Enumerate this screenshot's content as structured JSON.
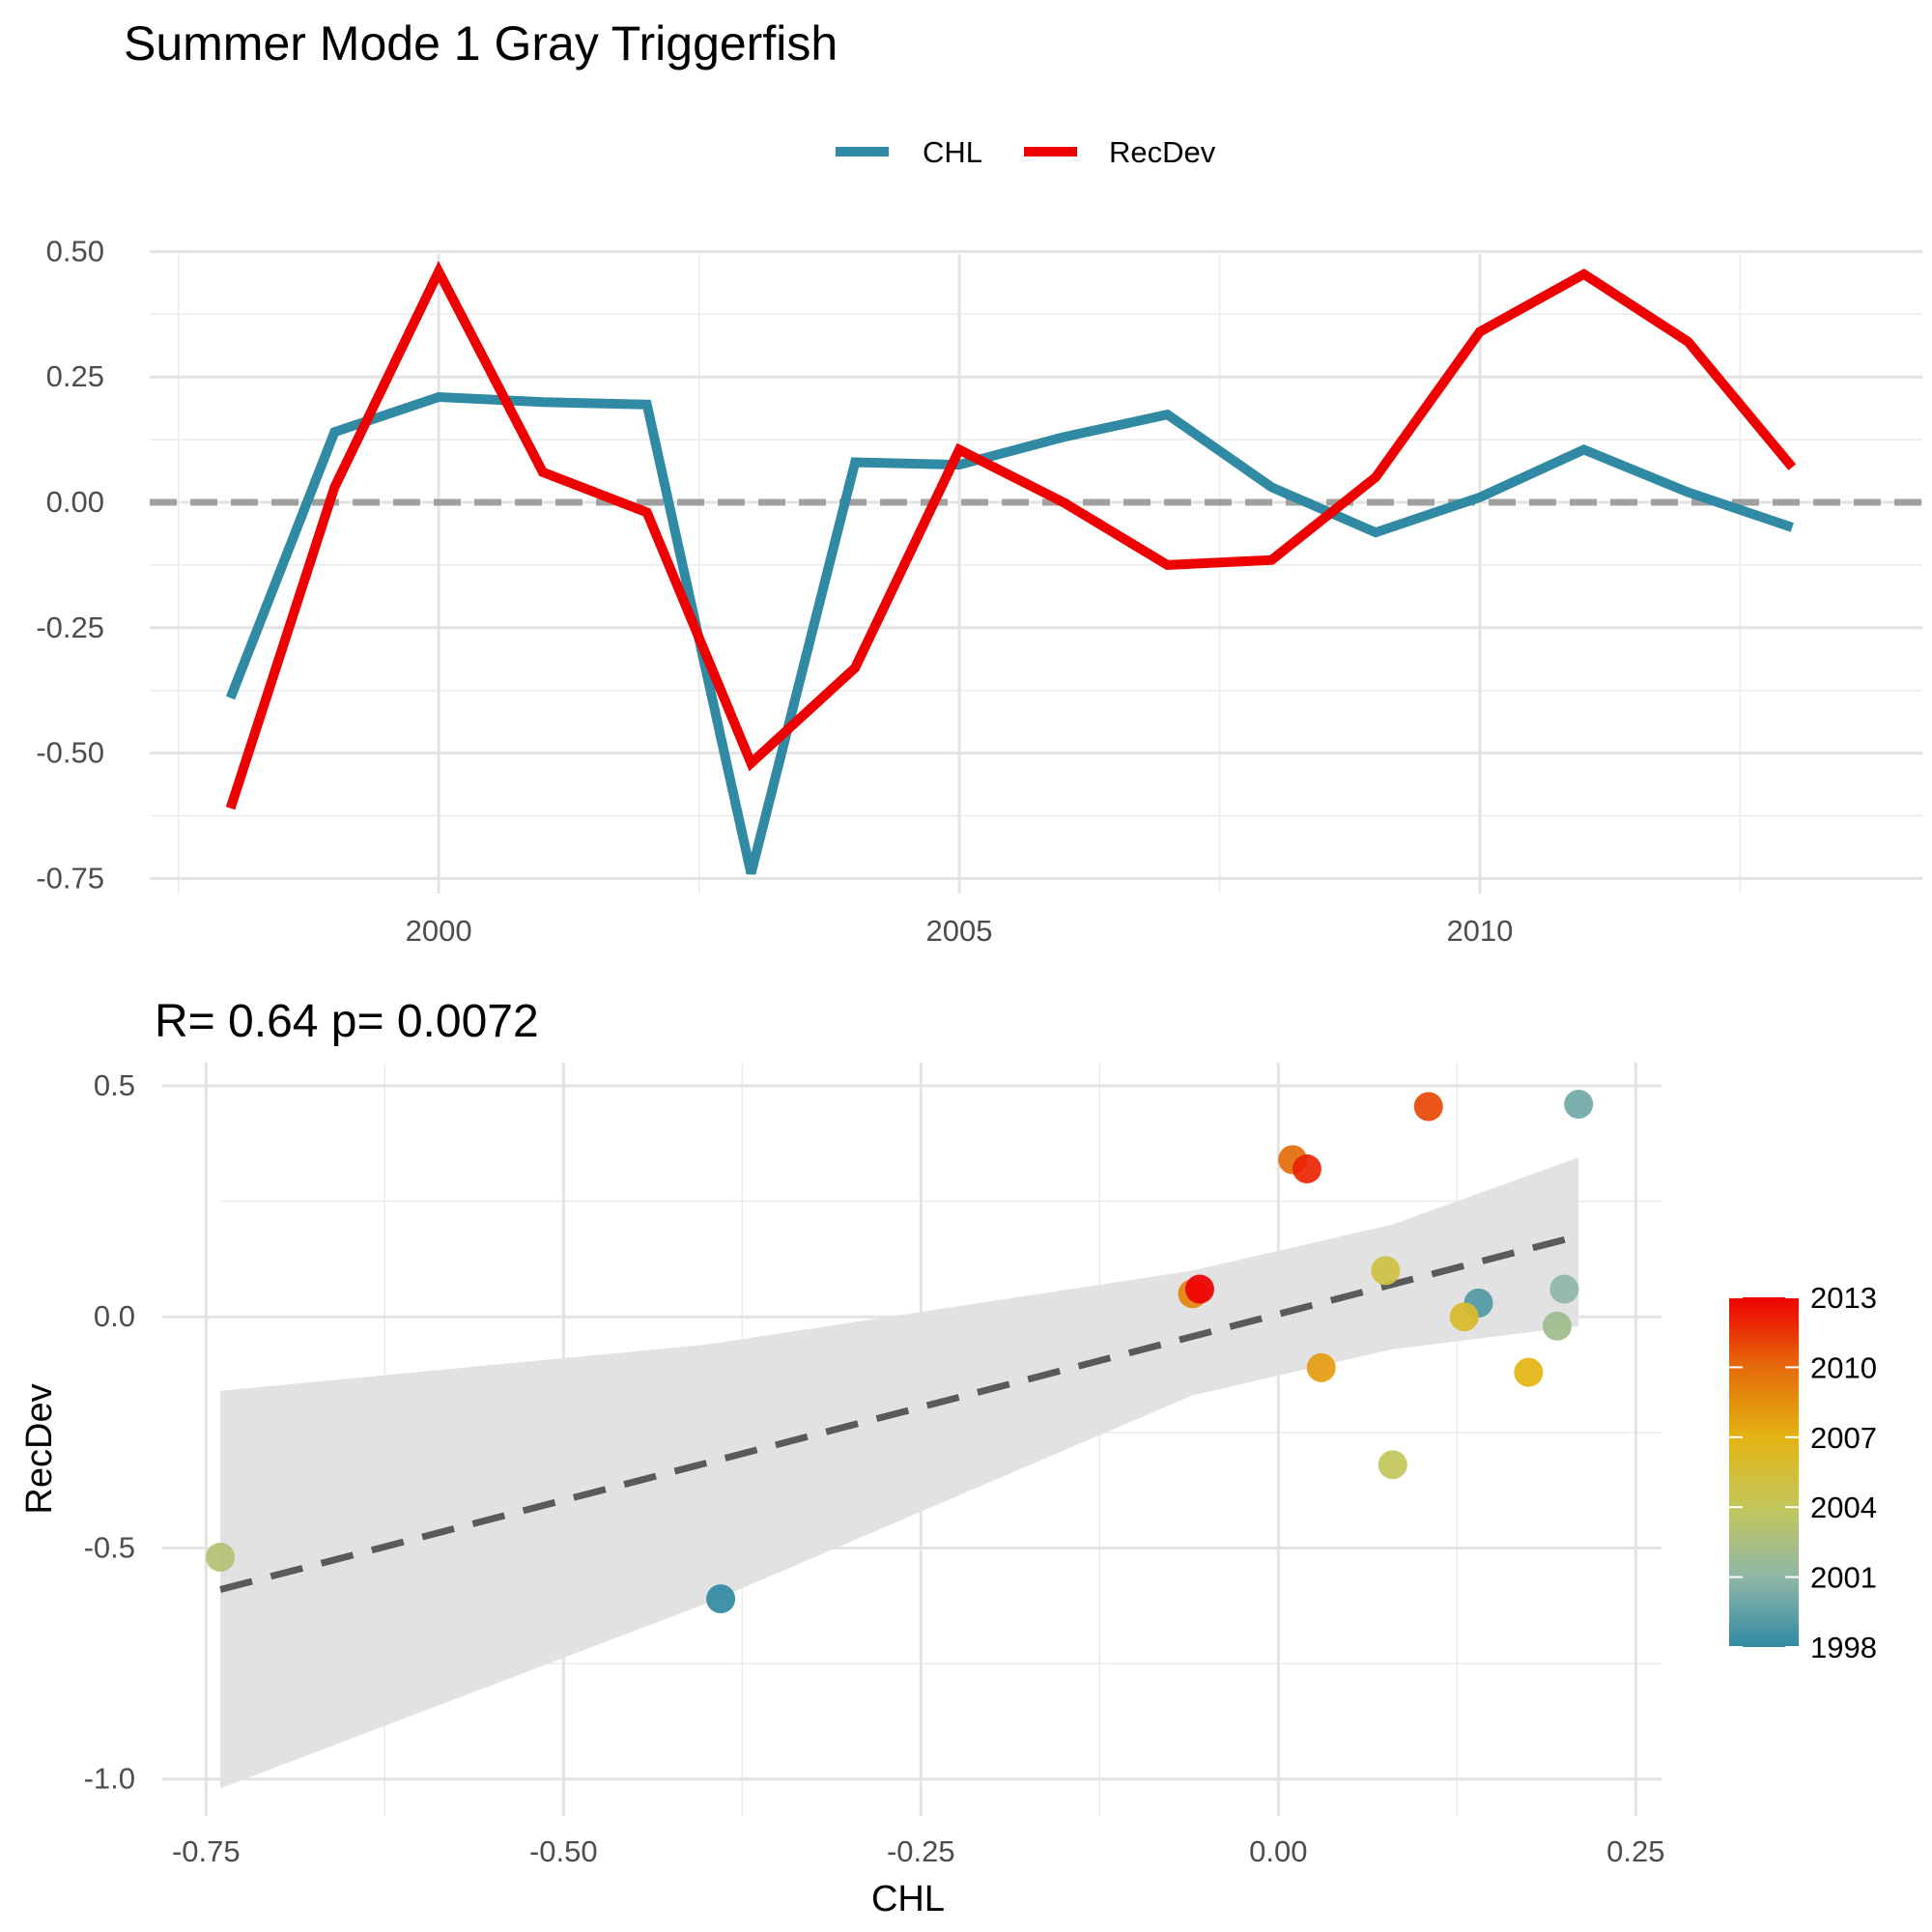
{
  "title": "Summer Mode 1 Gray Triggerfish",
  "chart_data": [
    {
      "type": "line",
      "legend": {
        "position": "top",
        "entries": [
          "CHL",
          "RecDev"
        ]
      },
      "x": [
        1998,
        1999,
        2000,
        2001,
        2002,
        2003,
        2004,
        2005,
        2006,
        2007,
        2008,
        2009,
        2010,
        2011,
        2012,
        2013
      ],
      "series": [
        {
          "name": "CHL",
          "color": "#318aa3",
          "values": [
            -0.39,
            0.14,
            0.21,
            0.2,
            0.195,
            -0.74,
            0.08,
            0.075,
            0.13,
            0.175,
            0.03,
            -0.06,
            0.01,
            0.105,
            0.02,
            -0.05
          ]
        },
        {
          "name": "RecDev",
          "color": "#ee0000",
          "values": [
            -0.61,
            0.03,
            0.46,
            0.06,
            -0.02,
            -0.52,
            -0.33,
            0.105,
            0.0,
            -0.125,
            -0.115,
            0.05,
            0.34,
            0.455,
            0.32,
            0.07
          ]
        }
      ],
      "xticks": [
        "2000",
        "2005",
        "2010"
      ],
      "yticks": [
        "0.50",
        "0.25",
        "0.00",
        "-0.25",
        "-0.50",
        "-0.75"
      ],
      "xlim": [
        1996.9,
        2014.25
      ],
      "ylim": [
        -0.78,
        0.52
      ],
      "reference_line": {
        "y": 0,
        "style": "dashed",
        "color": "#a0a0a0"
      },
      "grid": true
    },
    {
      "type": "scatter",
      "subtitle": "R= 0.64  p= 0.0072",
      "xlabel": "CHL",
      "ylabel": "RecDev",
      "xticks": [
        "-0.75",
        "-0.50",
        "-0.25",
        "0.00",
        "0.25"
      ],
      "yticks": [
        "0.5",
        "0.0",
        "-0.5",
        "-1.0"
      ],
      "xlim": [
        -0.786,
        0.268
      ],
      "ylim": [
        -1.08,
        0.55
      ],
      "points": [
        {
          "year": 1998,
          "x": -0.39,
          "y": -0.61
        },
        {
          "year": 1999,
          "x": 0.14,
          "y": 0.03
        },
        {
          "year": 2000,
          "x": 0.21,
          "y": 0.46
        },
        {
          "year": 2001,
          "x": 0.2,
          "y": 0.06
        },
        {
          "year": 2002,
          "x": 0.195,
          "y": -0.02
        },
        {
          "year": 2003,
          "x": -0.74,
          "y": -0.52
        },
        {
          "year": 2004,
          "x": 0.08,
          "y": -0.32
        },
        {
          "year": 2005,
          "x": 0.075,
          "y": 0.1
        },
        {
          "year": 2006,
          "x": 0.13,
          "y": 0.0
        },
        {
          "year": 2007,
          "x": 0.175,
          "y": -0.12
        },
        {
          "year": 2008,
          "x": 0.03,
          "y": -0.11
        },
        {
          "year": 2009,
          "x": -0.06,
          "y": 0.05
        },
        {
          "year": 2010,
          "x": 0.01,
          "y": 0.34
        },
        {
          "year": 2011,
          "x": 0.105,
          "y": 0.455
        },
        {
          "year": 2012,
          "x": 0.02,
          "y": 0.32
        },
        {
          "year": 2013,
          "x": -0.055,
          "y": 0.06
        }
      ],
      "fit_line": {
        "x": [
          -0.74,
          0.21
        ],
        "y": [
          -0.59,
          0.175
        ],
        "style": "dashed",
        "color": "#5a5a5a"
      },
      "confidence_band": {
        "x": [
          -0.74,
          -0.4,
          -0.06,
          0.08,
          0.21
        ],
        "lower": [
          -1.02,
          -0.62,
          -0.17,
          -0.07,
          -0.02
        ],
        "upper": [
          -0.16,
          -0.06,
          0.1,
          0.2,
          0.345
        ],
        "color": "#e0e0e0"
      },
      "colorbar": {
        "title": "",
        "labels": [
          "2013",
          "2010",
          "2007",
          "2004",
          "2001",
          "1998"
        ],
        "range": [
          1998,
          2013
        ],
        "stops": [
          "#318aa3",
          "#8fb7a7",
          "#c3c65a",
          "#e3b412",
          "#e56b0a",
          "#ee0000"
        ]
      },
      "grid": true
    }
  ]
}
